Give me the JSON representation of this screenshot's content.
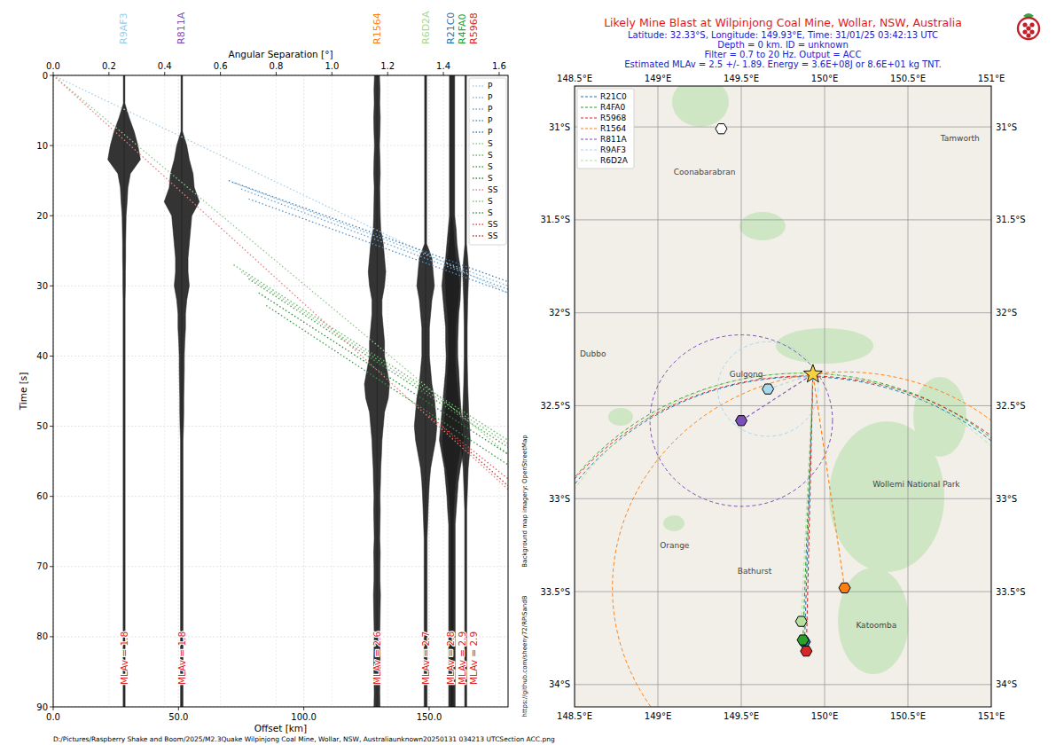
{
  "chart_data": [
    {
      "type": "record_section",
      "x_label": "Offset [km]",
      "x2_label": "Angular Separation [°]",
      "y_label": "Time [s]",
      "xlim": [
        0,
        181.5
      ],
      "x2lim": [
        0,
        1.632
      ],
      "ylim": [
        0,
        90
      ],
      "xticks": [
        {
          "value": 0,
          "label": "0.0"
        },
        {
          "value": 50,
          "label": "50.0"
        },
        {
          "value": 100,
          "label": "100.0"
        },
        {
          "value": 150,
          "label": "150.0"
        }
      ],
      "x2ticks": [
        {
          "value": 0,
          "label": "0.0"
        },
        0.2,
        0.4,
        0.6,
        0.8,
        {
          "value": 1,
          "label": "1.0"
        },
        1.2,
        1.4,
        1.6
      ],
      "yticks": [
        0,
        10,
        20,
        30,
        40,
        50,
        60,
        70,
        80,
        90
      ],
      "grid": true,
      "legend": "upper right",
      "traces": {
        "t": [
          0,
          2,
          4,
          6,
          8,
          10,
          12,
          14,
          16,
          18,
          20,
          22,
          24,
          26,
          28,
          30,
          32,
          34,
          36,
          38,
          40,
          42,
          44,
          46,
          48,
          50,
          52,
          54,
          56,
          58,
          60,
          62,
          64,
          66,
          68,
          70,
          72,
          74,
          76,
          78,
          80,
          82,
          84,
          86,
          88,
          90
        ],
        "stations": [
          {
            "name": "R9AF3",
            "color": "#9ccde6",
            "offset": 28.3,
            "mlav_label": "MLAv = 1.8",
            "envelope": [
              0.3,
              0.3,
              0.3,
              2.0,
              4.0,
              5.5,
              6.5,
              2.5,
              1.5,
              1.2,
              0.8,
              0.7,
              0.6,
              0.6,
              0.5,
              0.5,
              0.4,
              0.4,
              0.4,
              0.4,
              0.4,
              0.4,
              0.4,
              0.4,
              0.4,
              0.4,
              0.4,
              0.4,
              0.4,
              0.4,
              0.4,
              0.4,
              0.4,
              0.4,
              0.4,
              0.4,
              0.4,
              0.4,
              0.4,
              0.4,
              0.4,
              0.4,
              0.4,
              0.4,
              0.4,
              0.4
            ]
          },
          {
            "name": "R811A",
            "color": "#7b4fb5",
            "offset": 51.3,
            "mlav_label": "MLAv = 1.8",
            "envelope": [
              0.3,
              0.3,
              0.3,
              0.3,
              0.3,
              2.0,
              3.0,
              4.5,
              5.0,
              7.0,
              4.0,
              3.5,
              3.0,
              2.5,
              2.5,
              3.0,
              2.0,
              1.5,
              1.5,
              1.2,
              1.0,
              1.0,
              0.9,
              0.8,
              0.8,
              0.7,
              0.5,
              0.5,
              0.5,
              0.5,
              0.5,
              0.5,
              0.5,
              0.5,
              0.5,
              0.5,
              0.5,
              0.5,
              0.5,
              0.5,
              0.5,
              0.5,
              0.5,
              0.5,
              0.5,
              0.5
            ]
          },
          {
            "name": "R1564",
            "color": "#ff7f0e",
            "offset": 129.2,
            "mlav_label": "MLAv = 2.6",
            "envelope": [
              1.0,
              1.2,
              1.1,
              1.3,
              1.2,
              1.0,
              1.2,
              1.3,
              1.1,
              1.2,
              1.3,
              1.5,
              2.5,
              3.0,
              3.5,
              3.0,
              2.0,
              2.0,
              2.5,
              3.0,
              3.0,
              4.0,
              5.0,
              4.5,
              3.0,
              2.5,
              2.0,
              1.8,
              1.5,
              1.4,
              1.2,
              1.3,
              1.2,
              1.1,
              1.3,
              1.2,
              1.2,
              1.4,
              1.3,
              1.2,
              1.1,
              1.2,
              1.3,
              1.2,
              1.1,
              1.2
            ]
          },
          {
            "name": "R6D2A",
            "color": "#a9d98f",
            "offset": 148.6,
            "mlav_label": "MLAv = 2.7",
            "envelope": [
              0.4,
              0.4,
              0.4,
              0.4,
              0.4,
              0.4,
              0.4,
              0.4,
              0.4,
              0.4,
              0.4,
              0.4,
              0.4,
              2.5,
              3.0,
              3.5,
              2.5,
              2.0,
              1.5,
              1.5,
              1.5,
              2.0,
              2.5,
              3.5,
              4.0,
              4.5,
              4.0,
              3.0,
              2.0,
              1.5,
              1.2,
              1.0,
              0.8,
              0.6,
              0.6,
              0.6,
              0.6,
              0.6,
              0.6,
              0.6,
              0.6,
              0.6,
              0.6,
              0.6,
              0.6,
              0.6
            ]
          },
          {
            "name": "R21C0",
            "color": "#1f77b4",
            "offset": 158.6,
            "mlav_label": "MLAv = 2.8",
            "envelope": [
              0.5,
              0.5,
              0.5,
              0.5,
              0.5,
              0.5,
              0.5,
              0.5,
              0.5,
              0.5,
              0.5,
              1.0,
              1.5,
              2.0,
              3.0,
              3.5,
              3.0,
              2.5,
              2.0,
              2.0,
              1.8,
              2.0,
              2.5,
              3.0,
              3.5,
              4.0,
              4.5,
              3.5,
              2.5,
              2.0,
              1.5,
              1.2,
              0.8,
              0.8,
              0.8,
              0.8,
              0.8,
              0.8,
              0.8,
              0.8,
              0.8,
              0.8,
              0.8,
              0.8,
              0.8,
              0.8
            ]
          },
          {
            "name": "R4FA0",
            "color": "#2ca02c",
            "offset": 159.6,
            "mlav_label": "MLAv = 2.9",
            "envelope": [
              0.6,
              0.6,
              0.6,
              0.6,
              0.6,
              0.6,
              0.6,
              0.6,
              0.6,
              0.6,
              0.6,
              1.2,
              1.5,
              2.2,
              3.2,
              3.0,
              2.8,
              2.2,
              2.0,
              1.8,
              1.8,
              2.2,
              2.5,
              2.8,
              3.2,
              3.8,
              4.2,
              3.8,
              2.8,
              2.0,
              1.6,
              1.2,
              0.8,
              0.8,
              0.8,
              0.8,
              0.8,
              0.8,
              0.8,
              0.8,
              0.8,
              0.8,
              0.8,
              0.8,
              0.8,
              0.8
            ]
          },
          {
            "name": "R5968",
            "color": "#d62728",
            "offset": 164.6,
            "mlav_label": "MLAv = 2.9",
            "envelope": [
              0.3,
              0.3,
              0.3,
              0.3,
              0.3,
              0.3,
              0.3,
              0.3,
              0.3,
              0.3,
              0.3,
              0.3,
              0.3,
              0.8,
              1.2,
              1.0,
              0.8,
              0.7,
              0.6,
              0.6,
              0.6,
              0.7,
              0.8,
              1.0,
              1.2,
              1.5,
              1.8,
              1.5,
              1.0,
              0.8,
              0.6,
              0.4,
              0.4,
              0.4,
              0.4,
              0.4,
              0.4,
              0.4,
              0.4,
              0.4,
              0.4,
              0.4,
              0.4,
              0.4,
              0.4,
              0.4
            ]
          }
        ]
      },
      "series": [
        {
          "name": "P",
          "color": "#a6cee3",
          "x": [
            0,
            181.5
          ],
          "values": [
            0,
            31.0
          ]
        },
        {
          "name": "P",
          "color": "#8ab6d6",
          "x": [
            72,
            181.5
          ],
          "values": [
            15.3,
            30.0
          ]
        },
        {
          "name": "P",
          "color": "#6fa3cf",
          "x": [
            75,
            181.5
          ],
          "values": [
            16.2,
            30.5
          ]
        },
        {
          "name": "P",
          "color": "#5592c4",
          "x": [
            78,
            181.5
          ],
          "values": [
            17.6,
            31.0
          ]
        },
        {
          "name": "P",
          "color": "#3a7fb8",
          "x": [
            70,
            181.5
          ],
          "values": [
            15.0,
            29.4
          ]
        },
        {
          "name": "S",
          "color": "#8fc98f",
          "x": [
            0,
            181.5
          ],
          "values": [
            0,
            54.0
          ]
        },
        {
          "name": "S",
          "color": "#6ab56c",
          "x": [
            72,
            181.5
          ],
          "values": [
            27.0,
            52.0
          ]
        },
        {
          "name": "S",
          "color": "#4aa04f",
          "x": [
            78,
            181.5
          ],
          "values": [
            29.0,
            53.0
          ]
        },
        {
          "name": "S",
          "color": "#2e8b3a",
          "x": [
            82,
            181.5
          ],
          "values": [
            31.0,
            54.0
          ]
        },
        {
          "name": "SS",
          "color": "#e88080",
          "x": [
            0,
            181.5
          ],
          "values": [
            0,
            59.0
          ]
        },
        {
          "name": "S",
          "color": "#7fbf7f",
          "x": [
            75,
            181.5
          ],
          "values": [
            28.0,
            52.5
          ]
        },
        {
          "name": "S",
          "color": "#3f9a48",
          "x": [
            85,
            181.5
          ],
          "values": [
            32.8,
            55.5
          ]
        },
        {
          "name": "SS",
          "color": "#e05050",
          "x": [
            150,
            181.5
          ],
          "values": [
            48.5,
            57.5
          ]
        },
        {
          "name": "SS",
          "color": "#c83232",
          "x": [
            155,
            181.5
          ],
          "values": [
            50.0,
            58.5
          ]
        }
      ],
      "footer": "D:/Pictures/Raspberry Shake and Boom/2025/M2.3Quake Wilpinjong Coal Mine, Wollar, NSW, Australiaunknown20250131 034213 UTCSection ACC.png"
    },
    {
      "type": "map",
      "title": "Likely Mine Blast at Wilpinjong Coal Mine, Wollar, NSW, Australia",
      "subtitle": [
        "Latitude: 32.33°S, Longitude: 149.93°E, Time: 31/01/25 03:42:13 UTC",
        "Depth = 0 km. ID = unknown",
        "Filter = 0.7 to 20 Hz. Output = ACC",
        "Estimated MLAv = 2.5 +/- 1.89. Energy = 3.6E+08J or 8.6E+01 kg TNT."
      ],
      "xlim": [
        148.5,
        151
      ],
      "ylim": [
        -34.12,
        -30.78
      ],
      "xticks": [
        {
          "value": 148.5,
          "label": "148.5°E"
        },
        {
          "value": 149,
          "label": "149°E"
        },
        {
          "value": 149.5,
          "label": "149.5°E"
        },
        {
          "value": 150,
          "label": "150°E"
        },
        {
          "value": 150.5,
          "label": "150.5°E"
        },
        {
          "value": 151,
          "label": "151°E"
        }
      ],
      "yticks": [
        {
          "value": -31,
          "label": "31°S"
        },
        {
          "value": -31.5,
          "label": "31.5°S"
        },
        {
          "value": -32,
          "label": "32°S"
        },
        {
          "value": -32.5,
          "label": "32.5°S"
        },
        {
          "value": -33,
          "label": "33°S"
        },
        {
          "value": -33.5,
          "label": "33.5°S"
        },
        {
          "value": -34,
          "label": "34°S"
        }
      ],
      "grid": true,
      "legend": "upper left",
      "event": {
        "lon": 149.93,
        "lat": -32.33
      },
      "stations": [
        {
          "name": "R21C0",
          "color": "#1f77b4",
          "lon": 149.88,
          "lat": -33.77
        },
        {
          "name": "R4FA0",
          "color": "#2ca02c",
          "lon": 149.87,
          "lat": -33.76
        },
        {
          "name": "R5968",
          "color": "#d62728",
          "lon": 149.89,
          "lat": -33.82
        },
        {
          "name": "R1564",
          "color": "#ff7f0e",
          "lon": 150.12,
          "lat": -33.48
        },
        {
          "name": "R811A",
          "color": "#7b4fb5",
          "lon": 149.5,
          "lat": -32.58
        },
        {
          "name": "R9AF3",
          "color": "#a8d8ea",
          "lon": 149.66,
          "lat": -32.41
        },
        {
          "name": "R6D2A",
          "color": "#b5e0a0",
          "lon": 149.86,
          "lat": -33.66
        }
      ],
      "inactive_stations": [
        {
          "lon": 149.38,
          "lat": -31.01
        }
      ],
      "places": [
        {
          "name": "Dubbo",
          "lon": 148.61,
          "lat": -32.25
        },
        {
          "name": "Gulgong",
          "lon": 149.53,
          "lat": -32.36
        },
        {
          "name": "Coonabarabran",
          "lon": 149.28,
          "lat": -31.27
        },
        {
          "name": "Tamworth",
          "lon": 150.93,
          "lat": -31.09
        },
        {
          "name": "Orange",
          "lon": 149.1,
          "lat": -33.28
        },
        {
          "name": "Bathurst",
          "lon": 149.58,
          "lat": -33.42
        },
        {
          "name": "Katoomba",
          "lon": 150.31,
          "lat": -33.71
        },
        {
          "name": "Wollemi National Park",
          "lon": 150.55,
          "lat": -32.95
        }
      ],
      "attribution": "Background map imagery: OpenStreetMap",
      "source_url": "https://github.com/sheeny72/RPiSandB"
    }
  ]
}
